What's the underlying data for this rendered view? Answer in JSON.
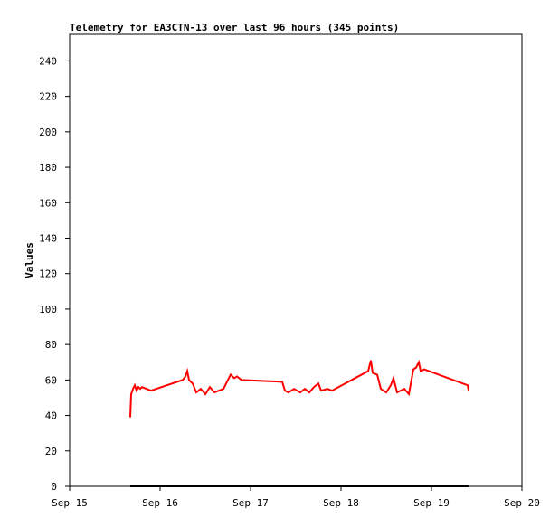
{
  "chart_data": {
    "type": "line",
    "title": "Telemetry for EA3CTN-13 over last 96 hours (345 points)",
    "y_label": "Values",
    "xlim": [
      15,
      20
    ],
    "xticks": [
      {
        "value": 15,
        "label": "Sep 15"
      },
      {
        "value": 16,
        "label": "Sep 16"
      },
      {
        "value": 17,
        "label": "Sep 17"
      },
      {
        "value": 18,
        "label": "Sep 18"
      },
      {
        "value": 19,
        "label": "Sep 19"
      },
      {
        "value": 20,
        "label": "Sep 20"
      }
    ],
    "ylim": [
      0,
      255
    ],
    "yticks": [
      0,
      20,
      40,
      60,
      80,
      100,
      120,
      140,
      160,
      180,
      200,
      220,
      240
    ],
    "series": [
      {
        "color": "#ff0000",
        "x": [
          15.67,
          15.68,
          15.7,
          15.72,
          15.74,
          15.76,
          15.78,
          15.8,
          15.85,
          15.9,
          16.25,
          16.28,
          16.3,
          16.32,
          16.36,
          16.4,
          16.45,
          16.5,
          16.55,
          16.6,
          16.65,
          16.7,
          16.75,
          16.78,
          16.82,
          16.85,
          16.9,
          17.35,
          17.38,
          17.42,
          17.48,
          17.55,
          17.6,
          17.65,
          17.7,
          17.75,
          17.78,
          17.85,
          17.9,
          18.3,
          18.33,
          18.35,
          18.4,
          18.44,
          18.5,
          18.55,
          18.58,
          18.62,
          18.7,
          18.75,
          18.8,
          18.83,
          18.86,
          18.88,
          18.92,
          19.4,
          19.41
        ],
        "values": [
          39,
          52,
          55,
          57,
          54,
          56,
          55,
          56,
          55,
          54,
          60,
          62,
          65,
          60,
          58,
          53,
          55,
          52,
          56,
          53,
          54,
          55,
          60,
          63,
          61,
          62,
          60,
          59,
          54,
          53,
          55,
          53,
          55,
          53,
          56,
          58,
          54,
          55,
          54,
          65,
          71,
          64,
          63,
          55,
          53,
          57,
          61,
          53,
          55,
          52,
          66,
          67,
          70,
          65,
          66,
          57,
          54
        ]
      },
      {
        "color": "#000000",
        "x": [
          15.67,
          19.41
        ],
        "values": [
          0,
          0
        ]
      }
    ]
  }
}
